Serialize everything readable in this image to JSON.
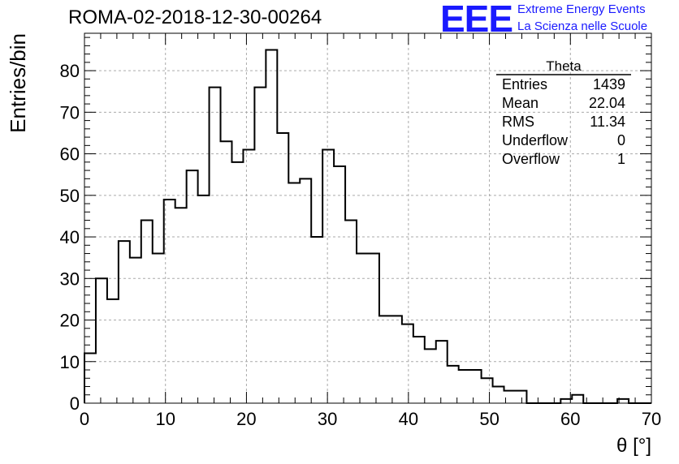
{
  "header": {
    "run_title": "ROMA-02-2018-12-30-00264",
    "logo_text": "EEE",
    "logo_line1": "Extreme Energy Events",
    "logo_line2": "La Scienza nelle Scuole",
    "logo_color": "#1a1aff"
  },
  "chart_data": {
    "type": "bar",
    "xlabel": "θ [°]",
    "ylabel": "Entries/bin",
    "xlim": [
      0,
      70
    ],
    "ylim": [
      0,
      89
    ],
    "grid": true,
    "x_ticks": [
      0,
      10,
      20,
      30,
      40,
      50,
      60,
      70
    ],
    "y_ticks": [
      0,
      10,
      20,
      30,
      40,
      50,
      60,
      70,
      80
    ],
    "bin_width": 1.4,
    "bin_edges_start": 0,
    "values": [
      12,
      30,
      25,
      39,
      35,
      44,
      36,
      49,
      47,
      56,
      50,
      76,
      63,
      58,
      61,
      76,
      85,
      65,
      53,
      54,
      40,
      61,
      57,
      44,
      36,
      36,
      21,
      21,
      19,
      16,
      13,
      15,
      9,
      8,
      8,
      6,
      4,
      3,
      3,
      0,
      0,
      0,
      1,
      2,
      0,
      0,
      0,
      1,
      0,
      0
    ],
    "stats_box": {
      "title": "Theta",
      "rows": [
        {
          "label": "Entries",
          "value": "1439"
        },
        {
          "label": "Mean",
          "value": "22.04"
        },
        {
          "label": "RMS",
          "value": "11.34"
        },
        {
          "label": "Underflow",
          "value": "0"
        },
        {
          "label": "Overflow",
          "value": "1"
        }
      ]
    }
  }
}
